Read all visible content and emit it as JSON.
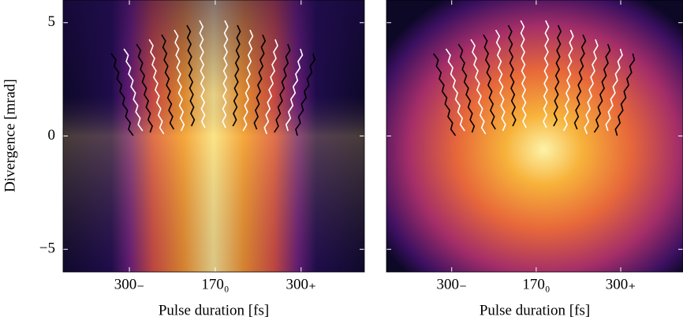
{
  "chart_data": [
    {
      "type": "heatmap",
      "xlabel": "Pulse duration [fs]",
      "ylabel": "Divergence [mrad]",
      "categories": [
        "300₋",
        "170₀",
        "300₊"
      ],
      "ylim": [
        -6,
        6
      ],
      "yticks": [
        {
          "value": -5,
          "label": "−5"
        },
        0,
        5
      ]
    },
    {
      "type": "heatmap",
      "xlabel": "Pulse duration [fs]",
      "categories": [
        "300₋",
        "170₀",
        "300₊"
      ],
      "ylim": [
        -6,
        6
      ]
    }
  ]
}
